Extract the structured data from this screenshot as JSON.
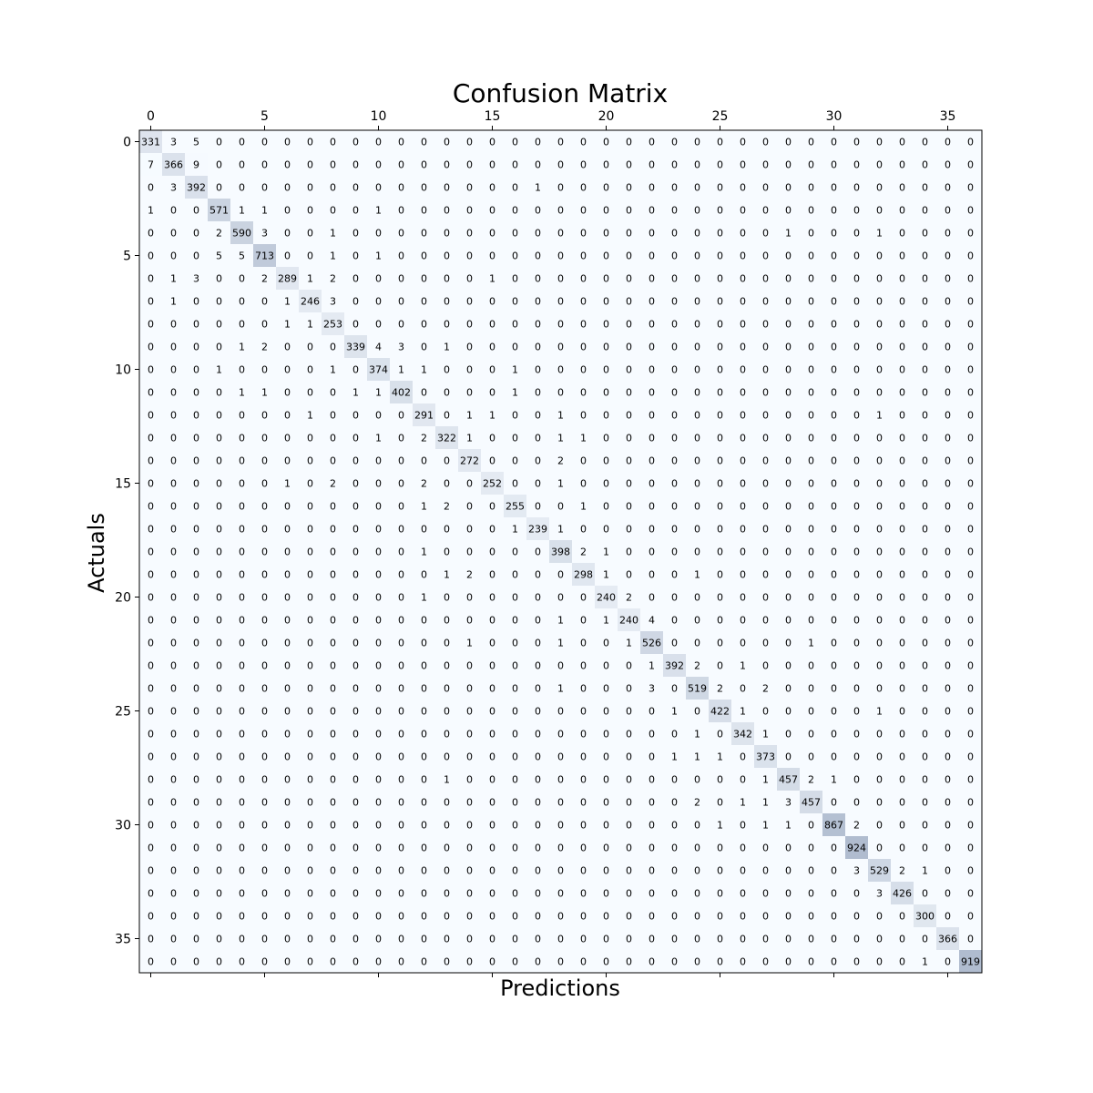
{
  "chart_data": {
    "type": "heatmap",
    "title": "Confusion Matrix",
    "xlabel": "Predictions",
    "ylabel": "Actuals",
    "x_tick_labels": [
      "0",
      "5",
      "10",
      "15",
      "20",
      "25",
      "30",
      "35"
    ],
    "y_tick_labels": [
      "0",
      "5",
      "10",
      "15",
      "20",
      "25",
      "30",
      "35"
    ],
    "colormap": [
      "#f7fbff",
      "#b0bccf"
    ],
    "matrix": [
      [
        331,
        3,
        5,
        0,
        0,
        0,
        0,
        0,
        0,
        0,
        0,
        0,
        0,
        0,
        0,
        0,
        0,
        0,
        0,
        0,
        0,
        0,
        0,
        0,
        0,
        0,
        0,
        0,
        0,
        0,
        0,
        0,
        0,
        0,
        0,
        0,
        0
      ],
      [
        7,
        366,
        9,
        0,
        0,
        0,
        0,
        0,
        0,
        0,
        0,
        0,
        0,
        0,
        0,
        0,
        0,
        0,
        0,
        0,
        0,
        0,
        0,
        0,
        0,
        0,
        0,
        0,
        0,
        0,
        0,
        0,
        0,
        0,
        0,
        0,
        0
      ],
      [
        0,
        3,
        392,
        0,
        0,
        0,
        0,
        0,
        0,
        0,
        0,
        0,
        0,
        0,
        0,
        0,
        0,
        1,
        0,
        0,
        0,
        0,
        0,
        0,
        0,
        0,
        0,
        0,
        0,
        0,
        0,
        0,
        0,
        0,
        0,
        0,
        0
      ],
      [
        1,
        0,
        0,
        571,
        1,
        1,
        0,
        0,
        0,
        0,
        1,
        0,
        0,
        0,
        0,
        0,
        0,
        0,
        0,
        0,
        0,
        0,
        0,
        0,
        0,
        0,
        0,
        0,
        0,
        0,
        0,
        0,
        0,
        0,
        0,
        0,
        0
      ],
      [
        0,
        0,
        0,
        2,
        590,
        3,
        0,
        0,
        1,
        0,
        0,
        0,
        0,
        0,
        0,
        0,
        0,
        0,
        0,
        0,
        0,
        0,
        0,
        0,
        0,
        0,
        0,
        0,
        1,
        0,
        0,
        0,
        1,
        0,
        0,
        0,
        0
      ],
      [
        0,
        0,
        0,
        5,
        5,
        713,
        0,
        0,
        1,
        0,
        1,
        0,
        0,
        0,
        0,
        0,
        0,
        0,
        0,
        0,
        0,
        0,
        0,
        0,
        0,
        0,
        0,
        0,
        0,
        0,
        0,
        0,
        0,
        0,
        0,
        0,
        0
      ],
      [
        0,
        1,
        3,
        0,
        0,
        2,
        289,
        1,
        2,
        0,
        0,
        0,
        0,
        0,
        0,
        1,
        0,
        0,
        0,
        0,
        0,
        0,
        0,
        0,
        0,
        0,
        0,
        0,
        0,
        0,
        0,
        0,
        0,
        0,
        0,
        0,
        0
      ],
      [
        0,
        1,
        0,
        0,
        0,
        0,
        1,
        246,
        3,
        0,
        0,
        0,
        0,
        0,
        0,
        0,
        0,
        0,
        0,
        0,
        0,
        0,
        0,
        0,
        0,
        0,
        0,
        0,
        0,
        0,
        0,
        0,
        0,
        0,
        0,
        0,
        0
      ],
      [
        0,
        0,
        0,
        0,
        0,
        0,
        1,
        1,
        253,
        0,
        0,
        0,
        0,
        0,
        0,
        0,
        0,
        0,
        0,
        0,
        0,
        0,
        0,
        0,
        0,
        0,
        0,
        0,
        0,
        0,
        0,
        0,
        0,
        0,
        0,
        0,
        0
      ],
      [
        0,
        0,
        0,
        0,
        1,
        2,
        0,
        0,
        0,
        339,
        4,
        3,
        0,
        1,
        0,
        0,
        0,
        0,
        0,
        0,
        0,
        0,
        0,
        0,
        0,
        0,
        0,
        0,
        0,
        0,
        0,
        0,
        0,
        0,
        0,
        0,
        0
      ],
      [
        0,
        0,
        0,
        1,
        0,
        0,
        0,
        0,
        1,
        0,
        374,
        1,
        1,
        0,
        0,
        0,
        1,
        0,
        0,
        0,
        0,
        0,
        0,
        0,
        0,
        0,
        0,
        0,
        0,
        0,
        0,
        0,
        0,
        0,
        0,
        0,
        0
      ],
      [
        0,
        0,
        0,
        0,
        1,
        1,
        0,
        0,
        0,
        1,
        1,
        402,
        0,
        0,
        0,
        0,
        1,
        0,
        0,
        0,
        0,
        0,
        0,
        0,
        0,
        0,
        0,
        0,
        0,
        0,
        0,
        0,
        0,
        0,
        0,
        0,
        0
      ],
      [
        0,
        0,
        0,
        0,
        0,
        0,
        0,
        1,
        0,
        0,
        0,
        0,
        291,
        0,
        1,
        1,
        0,
        0,
        1,
        0,
        0,
        0,
        0,
        0,
        0,
        0,
        0,
        0,
        0,
        0,
        0,
        0,
        1,
        0,
        0,
        0,
        0
      ],
      [
        0,
        0,
        0,
        0,
        0,
        0,
        0,
        0,
        0,
        0,
        1,
        0,
        2,
        322,
        1,
        0,
        0,
        0,
        1,
        1,
        0,
        0,
        0,
        0,
        0,
        0,
        0,
        0,
        0,
        0,
        0,
        0,
        0,
        0,
        0,
        0,
        0
      ],
      [
        0,
        0,
        0,
        0,
        0,
        0,
        0,
        0,
        0,
        0,
        0,
        0,
        0,
        0,
        272,
        0,
        0,
        0,
        2,
        0,
        0,
        0,
        0,
        0,
        0,
        0,
        0,
        0,
        0,
        0,
        0,
        0,
        0,
        0,
        0,
        0,
        0
      ],
      [
        0,
        0,
        0,
        0,
        0,
        0,
        1,
        0,
        2,
        0,
        0,
        0,
        2,
        0,
        0,
        252,
        0,
        0,
        1,
        0,
        0,
        0,
        0,
        0,
        0,
        0,
        0,
        0,
        0,
        0,
        0,
        0,
        0,
        0,
        0,
        0,
        0
      ],
      [
        0,
        0,
        0,
        0,
        0,
        0,
        0,
        0,
        0,
        0,
        0,
        0,
        1,
        2,
        0,
        0,
        255,
        0,
        0,
        1,
        0,
        0,
        0,
        0,
        0,
        0,
        0,
        0,
        0,
        0,
        0,
        0,
        0,
        0,
        0,
        0,
        0
      ],
      [
        0,
        0,
        0,
        0,
        0,
        0,
        0,
        0,
        0,
        0,
        0,
        0,
        0,
        0,
        0,
        0,
        1,
        239,
        1,
        0,
        0,
        0,
        0,
        0,
        0,
        0,
        0,
        0,
        0,
        0,
        0,
        0,
        0,
        0,
        0,
        0,
        0
      ],
      [
        0,
        0,
        0,
        0,
        0,
        0,
        0,
        0,
        0,
        0,
        0,
        0,
        1,
        0,
        0,
        0,
        0,
        0,
        398,
        2,
        1,
        0,
        0,
        0,
        0,
        0,
        0,
        0,
        0,
        0,
        0,
        0,
        0,
        0,
        0,
        0,
        0
      ],
      [
        0,
        0,
        0,
        0,
        0,
        0,
        0,
        0,
        0,
        0,
        0,
        0,
        0,
        1,
        2,
        0,
        0,
        0,
        0,
        298,
        1,
        0,
        0,
        0,
        1,
        0,
        0,
        0,
        0,
        0,
        0,
        0,
        0,
        0,
        0,
        0,
        0
      ],
      [
        0,
        0,
        0,
        0,
        0,
        0,
        0,
        0,
        0,
        0,
        0,
        0,
        1,
        0,
        0,
        0,
        0,
        0,
        0,
        0,
        240,
        2,
        0,
        0,
        0,
        0,
        0,
        0,
        0,
        0,
        0,
        0,
        0,
        0,
        0,
        0,
        0
      ],
      [
        0,
        0,
        0,
        0,
        0,
        0,
        0,
        0,
        0,
        0,
        0,
        0,
        0,
        0,
        0,
        0,
        0,
        0,
        1,
        0,
        1,
        240,
        4,
        0,
        0,
        0,
        0,
        0,
        0,
        0,
        0,
        0,
        0,
        0,
        0,
        0,
        0
      ],
      [
        0,
        0,
        0,
        0,
        0,
        0,
        0,
        0,
        0,
        0,
        0,
        0,
        0,
        0,
        1,
        0,
        0,
        0,
        1,
        0,
        0,
        1,
        526,
        0,
        0,
        0,
        0,
        0,
        0,
        1,
        0,
        0,
        0,
        0,
        0,
        0,
        0
      ],
      [
        0,
        0,
        0,
        0,
        0,
        0,
        0,
        0,
        0,
        0,
        0,
        0,
        0,
        0,
        0,
        0,
        0,
        0,
        0,
        0,
        0,
        0,
        1,
        392,
        2,
        0,
        1,
        0,
        0,
        0,
        0,
        0,
        0,
        0,
        0,
        0,
        0
      ],
      [
        0,
        0,
        0,
        0,
        0,
        0,
        0,
        0,
        0,
        0,
        0,
        0,
        0,
        0,
        0,
        0,
        0,
        0,
        1,
        0,
        0,
        0,
        3,
        0,
        519,
        2,
        0,
        2,
        0,
        0,
        0,
        0,
        0,
        0,
        0,
        0,
        0
      ],
      [
        0,
        0,
        0,
        0,
        0,
        0,
        0,
        0,
        0,
        0,
        0,
        0,
        0,
        0,
        0,
        0,
        0,
        0,
        0,
        0,
        0,
        0,
        0,
        1,
        0,
        422,
        1,
        0,
        0,
        0,
        0,
        0,
        1,
        0,
        0,
        0,
        0
      ],
      [
        0,
        0,
        0,
        0,
        0,
        0,
        0,
        0,
        0,
        0,
        0,
        0,
        0,
        0,
        0,
        0,
        0,
        0,
        0,
        0,
        0,
        0,
        0,
        0,
        1,
        0,
        342,
        1,
        0,
        0,
        0,
        0,
        0,
        0,
        0,
        0,
        0
      ],
      [
        0,
        0,
        0,
        0,
        0,
        0,
        0,
        0,
        0,
        0,
        0,
        0,
        0,
        0,
        0,
        0,
        0,
        0,
        0,
        0,
        0,
        0,
        0,
        1,
        1,
        1,
        0,
        373,
        0,
        0,
        0,
        0,
        0,
        0,
        0,
        0,
        0
      ],
      [
        0,
        0,
        0,
        0,
        0,
        0,
        0,
        0,
        0,
        0,
        0,
        0,
        0,
        1,
        0,
        0,
        0,
        0,
        0,
        0,
        0,
        0,
        0,
        0,
        0,
        0,
        0,
        1,
        457,
        2,
        1,
        0,
        0,
        0,
        0,
        0,
        0
      ],
      [
        0,
        0,
        0,
        0,
        0,
        0,
        0,
        0,
        0,
        0,
        0,
        0,
        0,
        0,
        0,
        0,
        0,
        0,
        0,
        0,
        0,
        0,
        0,
        0,
        2,
        0,
        1,
        1,
        3,
        457,
        0,
        0,
        0,
        0,
        0,
        0,
        0
      ],
      [
        0,
        0,
        0,
        0,
        0,
        0,
        0,
        0,
        0,
        0,
        0,
        0,
        0,
        0,
        0,
        0,
        0,
        0,
        0,
        0,
        0,
        0,
        0,
        0,
        0,
        1,
        0,
        1,
        1,
        0,
        867,
        2,
        0,
        0,
        0,
        0,
        0
      ],
      [
        0,
        0,
        0,
        0,
        0,
        0,
        0,
        0,
        0,
        0,
        0,
        0,
        0,
        0,
        0,
        0,
        0,
        0,
        0,
        0,
        0,
        0,
        0,
        0,
        0,
        0,
        0,
        0,
        0,
        0,
        0,
        924,
        0,
        0,
        0,
        0,
        0
      ],
      [
        0,
        0,
        0,
        0,
        0,
        0,
        0,
        0,
        0,
        0,
        0,
        0,
        0,
        0,
        0,
        0,
        0,
        0,
        0,
        0,
        0,
        0,
        0,
        0,
        0,
        0,
        0,
        0,
        0,
        0,
        0,
        3,
        529,
        2,
        1,
        0,
        0
      ],
      [
        0,
        0,
        0,
        0,
        0,
        0,
        0,
        0,
        0,
        0,
        0,
        0,
        0,
        0,
        0,
        0,
        0,
        0,
        0,
        0,
        0,
        0,
        0,
        0,
        0,
        0,
        0,
        0,
        0,
        0,
        0,
        0,
        3,
        426,
        0,
        0,
        0
      ],
      [
        0,
        0,
        0,
        0,
        0,
        0,
        0,
        0,
        0,
        0,
        0,
        0,
        0,
        0,
        0,
        0,
        0,
        0,
        0,
        0,
        0,
        0,
        0,
        0,
        0,
        0,
        0,
        0,
        0,
        0,
        0,
        0,
        0,
        0,
        300,
        0,
        0
      ],
      [
        0,
        0,
        0,
        0,
        0,
        0,
        0,
        0,
        0,
        0,
        0,
        0,
        0,
        0,
        0,
        0,
        0,
        0,
        0,
        0,
        0,
        0,
        0,
        0,
        0,
        0,
        0,
        0,
        0,
        0,
        0,
        0,
        0,
        0,
        0,
        366,
        0
      ],
      [
        0,
        0,
        0,
        0,
        0,
        0,
        0,
        0,
        0,
        0,
        0,
        0,
        0,
        0,
        0,
        0,
        0,
        0,
        0,
        0,
        0,
        0,
        0,
        0,
        0,
        0,
        0,
        0,
        0,
        0,
        0,
        0,
        0,
        0,
        1,
        0,
        919
      ]
    ]
  }
}
